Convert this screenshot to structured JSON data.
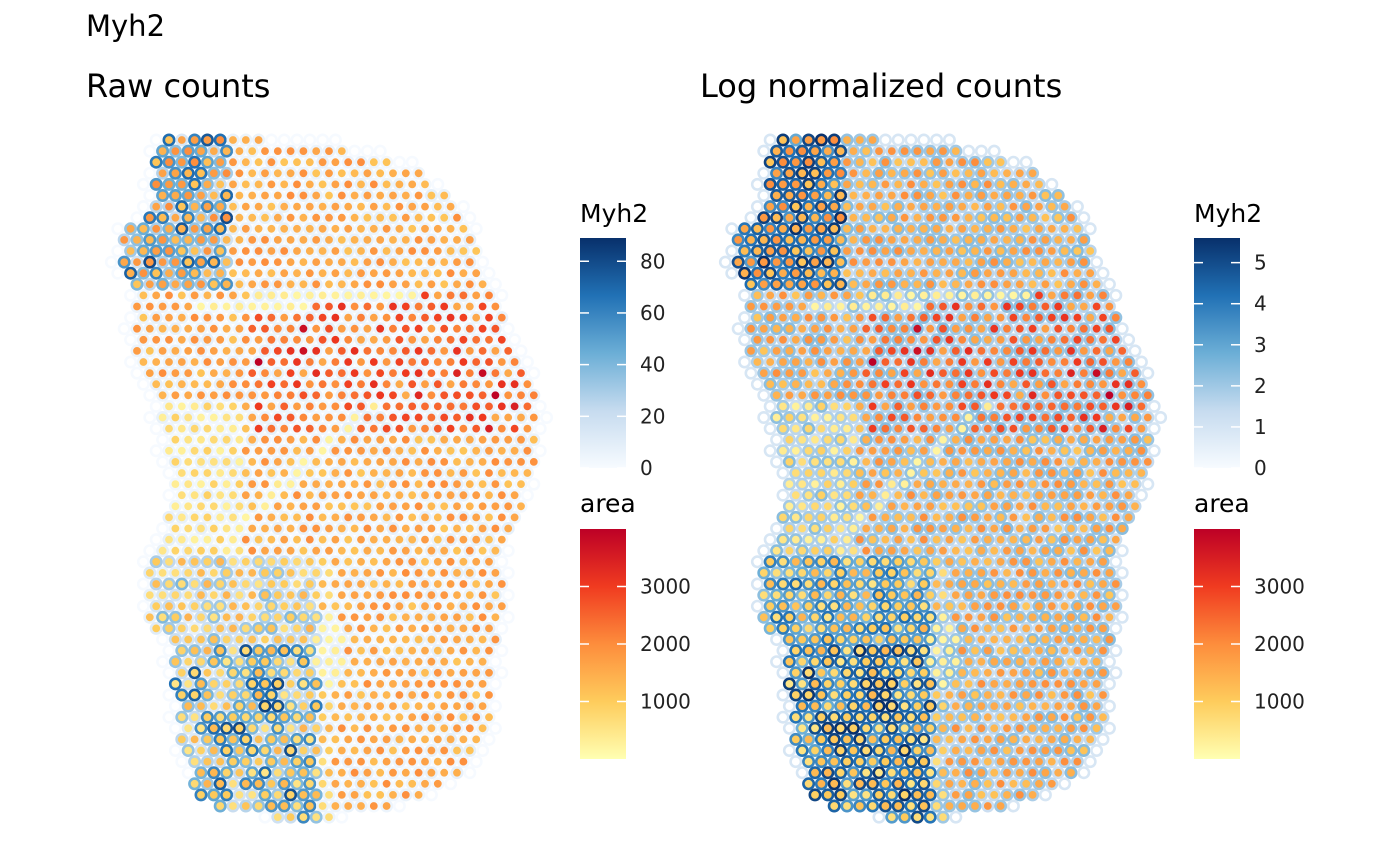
{
  "figure_title": "Myh2",
  "chart_data": [
    {
      "type": "scatter",
      "title": "Raw counts",
      "fill_variable": "area",
      "color_variable": "Myh2",
      "legend_placement": "right",
      "grid": false,
      "axes_visible": false,
      "color_legend": {
        "title": "Myh2",
        "ticks": [
          0,
          20,
          40,
          60,
          80
        ],
        "range": [
          0,
          89
        ],
        "colors": [
          "#F7FBFF",
          "#C6DBEF",
          "#6BAED6",
          "#2171B5",
          "#08306B"
        ]
      },
      "fill_legend": {
        "title": "area",
        "ticks": [
          1000,
          2000,
          3000
        ],
        "range": [
          0,
          4000
        ],
        "colors": [
          "#FFFFB2",
          "#FECC5C",
          "#FD8D3C",
          "#F03B20",
          "#BD0026"
        ]
      }
    },
    {
      "type": "scatter",
      "title": "Log normalized counts",
      "fill_variable": "area",
      "color_variable": "Myh2",
      "legend_placement": "right",
      "grid": false,
      "axes_visible": false,
      "color_legend": {
        "title": "Myh2",
        "ticks": [
          0,
          1,
          2,
          3,
          4,
          5
        ],
        "range": [
          0,
          5.6
        ],
        "colors": [
          "#F7FBFF",
          "#C6DBEF",
          "#6BAED6",
          "#2171B5",
          "#08306B"
        ]
      },
      "fill_legend": {
        "title": "area",
        "ticks": [
          1000,
          2000,
          3000
        ],
        "range": [
          0,
          4000
        ],
        "colors": [
          "#FFFFB2",
          "#FECC5C",
          "#FD8D3C",
          "#F03B20",
          "#BD0026"
        ]
      }
    }
  ]
}
